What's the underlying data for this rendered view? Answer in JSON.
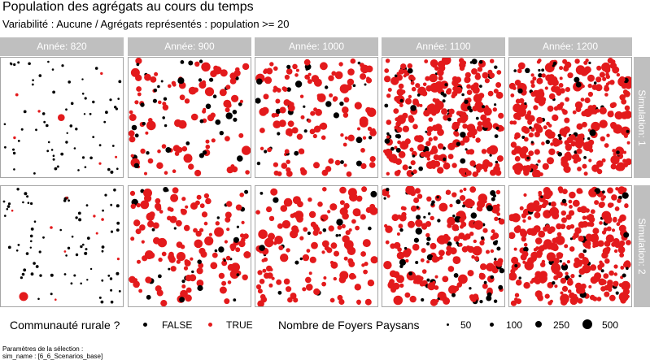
{
  "chart_data": {
    "type": "scatter",
    "title": "Population des agrégats au cours du temps",
    "subtitle": "Variabilité : Aucune / Agrégats représentés : population >= 20",
    "column_facets": [
      "Année: 820",
      "Année: 900",
      "Année: 1000",
      "Année: 1100",
      "Année: 1200"
    ],
    "row_facets": [
      "Simulation: 1",
      "Simulation: 2"
    ],
    "colors": {
      "FALSE": "#000000",
      "TRUE": "#e31a1c",
      "strip": "#bfbfbf",
      "panel_border": "#a6a6a6"
    },
    "approx_points_per_panel": [
      [
        72,
        135,
        155,
        330,
        330
      ],
      [
        85,
        150,
        155,
        250,
        330
      ]
    ],
    "approx_share_true": [
      [
        0.1,
        0.7,
        0.82,
        0.8,
        0.87
      ],
      [
        0.1,
        0.76,
        0.86,
        0.72,
        0.9
      ]
    ],
    "size_scale": {
      "values": [
        50,
        100,
        250,
        500
      ]
    },
    "axes": {
      "x": "hidden",
      "y": "hidden"
    },
    "legend_position": "bottom"
  },
  "legend": {
    "color_title": "Communauté rurale ?",
    "color_items": [
      "FALSE",
      "TRUE"
    ],
    "size_title": "Nombre de Foyers Paysans",
    "size_items": [
      "50",
      "100",
      "250",
      "500"
    ]
  },
  "caption": {
    "line1": "Paramètres de la sélection :",
    "line2": "sim_name : [6_6_Scenarios_base]"
  }
}
